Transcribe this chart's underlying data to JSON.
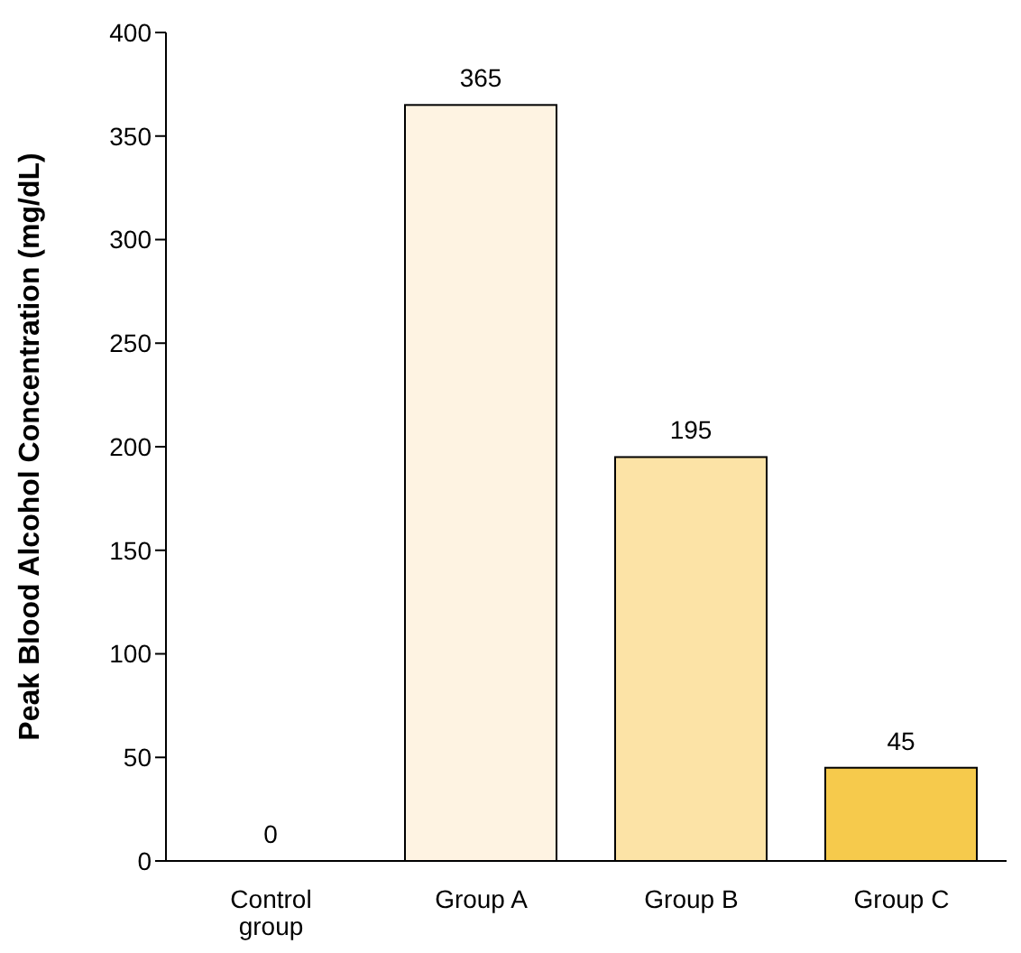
{
  "chart_data": {
    "type": "bar",
    "ylabel": "Peak Blood Alcohol Concentration (mg/dL)",
    "categories": [
      "Control group",
      "Group A",
      "Group B",
      "Group C"
    ],
    "values": [
      0,
      365,
      195,
      45
    ],
    "colors": [
      "#fef3e2",
      "#fef3e2",
      "#fce3a6",
      "#f6ca4c"
    ],
    "ylim": [
      0,
      400
    ],
    "yticks": [
      0,
      50,
      100,
      150,
      200,
      250,
      300,
      350,
      400
    ],
    "data_labels": true,
    "grid": false,
    "legend": false
  }
}
